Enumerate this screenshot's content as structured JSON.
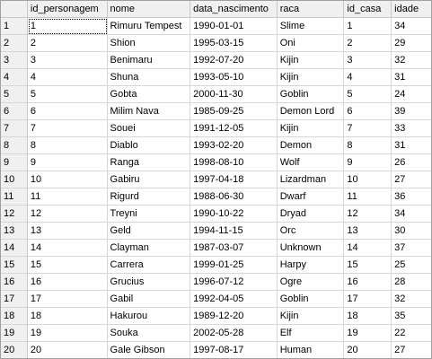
{
  "grid": {
    "columns": [
      "id_personagem",
      "nome",
      "data_nascimento",
      "raca",
      "id_casa",
      "idade"
    ],
    "rows": [
      {
        "n": "1",
        "id": "1",
        "nome": "Rimuru Tempest",
        "data": "1990-01-01",
        "raca": "Slime",
        "id_casa": "1",
        "idade": "34"
      },
      {
        "n": "2",
        "id": "2",
        "nome": "Shion",
        "data": "1995-03-15",
        "raca": "Oni",
        "id_casa": "2",
        "idade": "29"
      },
      {
        "n": "3",
        "id": "3",
        "nome": "Benimaru",
        "data": "1992-07-20",
        "raca": "Kijin",
        "id_casa": "3",
        "idade": "32"
      },
      {
        "n": "4",
        "id": "4",
        "nome": "Shuna",
        "data": "1993-05-10",
        "raca": "Kijin",
        "id_casa": "4",
        "idade": "31"
      },
      {
        "n": "5",
        "id": "5",
        "nome": "Gobta",
        "data": "2000-11-30",
        "raca": "Goblin",
        "id_casa": "5",
        "idade": "24"
      },
      {
        "n": "6",
        "id": "6",
        "nome": "Milim Nava",
        "data": "1985-09-25",
        "raca": "Demon Lord",
        "id_casa": "6",
        "idade": "39"
      },
      {
        "n": "7",
        "id": "7",
        "nome": "Souei",
        "data": "1991-12-05",
        "raca": "Kijin",
        "id_casa": "7",
        "idade": "33"
      },
      {
        "n": "8",
        "id": "8",
        "nome": "Diablo",
        "data": "1993-02-20",
        "raca": "Demon",
        "id_casa": "8",
        "idade": "31"
      },
      {
        "n": "9",
        "id": "9",
        "nome": "Ranga",
        "data": "1998-08-10",
        "raca": "Wolf",
        "id_casa": "9",
        "idade": "26"
      },
      {
        "n": "10",
        "id": "10",
        "nome": "Gabiru",
        "data": "1997-04-18",
        "raca": "Lizardman",
        "id_casa": "10",
        "idade": "27"
      },
      {
        "n": "11",
        "id": "11",
        "nome": "Rigurd",
        "data": "1988-06-30",
        "raca": "Dwarf",
        "id_casa": "11",
        "idade": "36"
      },
      {
        "n": "12",
        "id": "12",
        "nome": "Treyni",
        "data": "1990-10-22",
        "raca": "Dryad",
        "id_casa": "12",
        "idade": "34"
      },
      {
        "n": "13",
        "id": "13",
        "nome": "Geld",
        "data": "1994-11-15",
        "raca": "Orc",
        "id_casa": "13",
        "idade": "30"
      },
      {
        "n": "14",
        "id": "14",
        "nome": "Clayman",
        "data": "1987-03-07",
        "raca": "Unknown",
        "id_casa": "14",
        "idade": "37"
      },
      {
        "n": "15",
        "id": "15",
        "nome": "Carrera",
        "data": "1999-01-25",
        "raca": "Harpy",
        "id_casa": "15",
        "idade": "25"
      },
      {
        "n": "16",
        "id": "16",
        "nome": "Grucius",
        "data": "1996-07-12",
        "raca": "Ogre",
        "id_casa": "16",
        "idade": "28"
      },
      {
        "n": "17",
        "id": "17",
        "nome": "Gabil",
        "data": "1992-04-05",
        "raca": "Goblin",
        "id_casa": "17",
        "idade": "32"
      },
      {
        "n": "18",
        "id": "18",
        "nome": "Hakurou",
        "data": "1989-12-20",
        "raca": "Kijin",
        "id_casa": "18",
        "idade": "35"
      },
      {
        "n": "19",
        "id": "19",
        "nome": "Souka",
        "data": "2002-05-28",
        "raca": "Elf",
        "id_casa": "19",
        "idade": "22"
      },
      {
        "n": "20",
        "id": "20",
        "nome": "Gale Gibson",
        "data": "1997-08-17",
        "raca": "Human",
        "id_casa": "20",
        "idade": "27"
      }
    ]
  }
}
